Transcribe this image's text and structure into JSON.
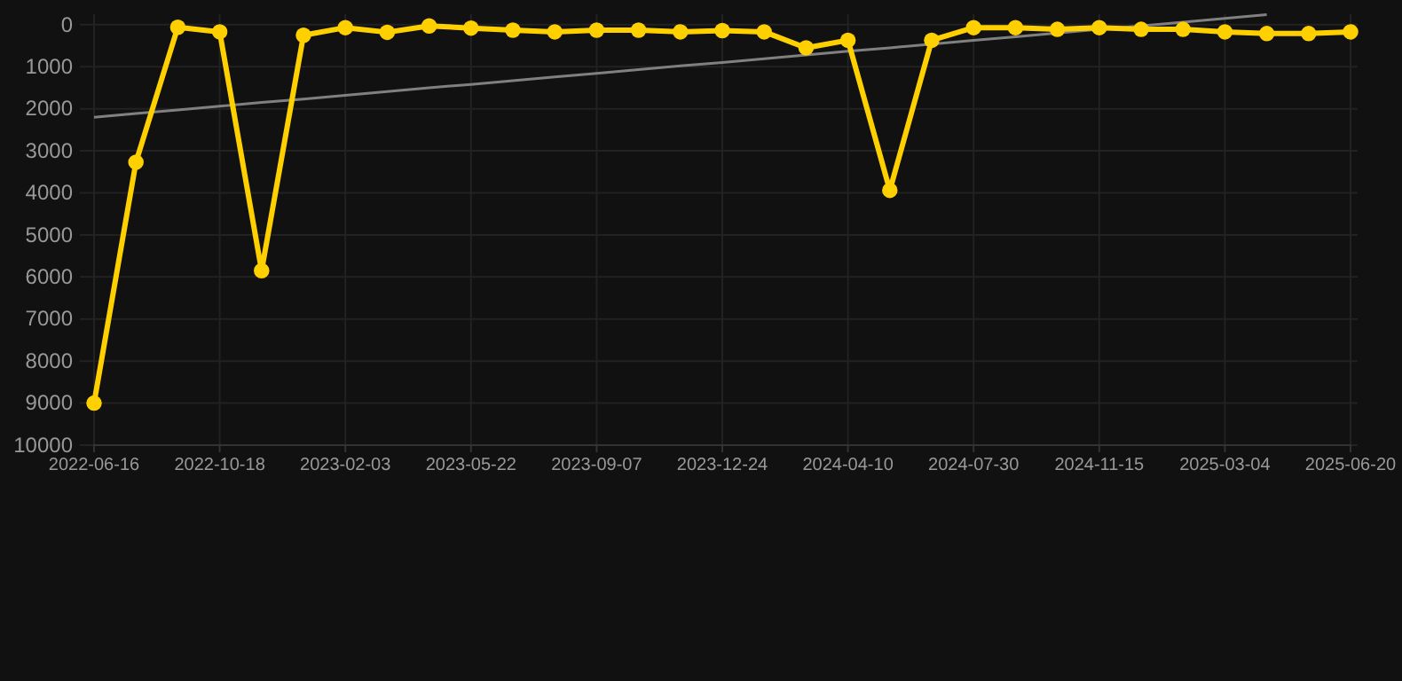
{
  "chart_data": {
    "type": "line",
    "categories": [
      "2022-06-16",
      null,
      null,
      "2022-10-18",
      null,
      null,
      "2023-02-03",
      null,
      null,
      "2023-05-22",
      null,
      null,
      "2023-09-07",
      null,
      null,
      "2023-12-24",
      null,
      null,
      "2024-04-10",
      null,
      null,
      "2024-07-30",
      null,
      null,
      "2024-11-15",
      null,
      null,
      "2025-03-04",
      null,
      null,
      "2025-06-20"
    ],
    "series": [
      {
        "color": "#ffd000",
        "marker": "circle",
        "values": [
          9000,
          3270,
          60,
          170,
          5850,
          250,
          70,
          180,
          30,
          80,
          130,
          170,
          130,
          130,
          170,
          140,
          170,
          550,
          370,
          3940,
          370,
          70,
          70,
          110,
          70,
          110,
          110,
          170,
          210,
          210,
          170
        ]
      },
      {
        "color": "#808080",
        "marker": "none",
        "values": [
          2200,
          2110,
          2030,
          1940,
          1850,
          1770,
          1680,
          1590,
          1500,
          1420,
          1330,
          1240,
          1160,
          1070,
          980,
          900,
          810,
          720,
          630,
          550,
          460,
          370,
          290,
          200,
          110,
          30,
          -60,
          -150,
          -240,
          null,
          null
        ]
      }
    ],
    "ylim": [
      10000,
      -250
    ],
    "yticks": [
      0,
      1000,
      2000,
      3000,
      4000,
      5000,
      6000,
      7000,
      8000,
      9000,
      10000
    ],
    "grid": true
  }
}
